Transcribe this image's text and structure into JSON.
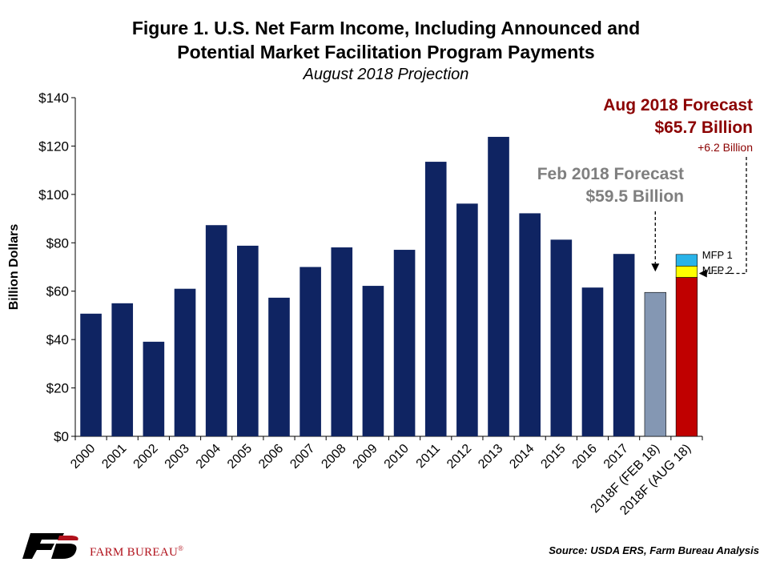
{
  "header": {
    "title_line1": "Figure 1. U.S. Net Farm Income, Including Announced and",
    "title_line2": "Potential Market Facilitation Program Payments",
    "subtitle": "August 2018 Projection"
  },
  "chart_data": {
    "type": "bar",
    "title": "Figure 1. U.S. Net Farm Income, Including Announced and Potential Market Facilitation Program Payments",
    "subtitle": "August 2018 Projection",
    "ylabel": "Billion Dollars",
    "xlabel": "",
    "ylim": [
      0,
      140
    ],
    "y_ticks": [
      0,
      20,
      40,
      60,
      80,
      100,
      120,
      140
    ],
    "y_tick_labels": [
      "$0",
      "$20",
      "$40",
      "$60",
      "$80",
      "$100",
      "$120",
      "$140"
    ],
    "grid": false,
    "categories": [
      "2000",
      "2001",
      "2002",
      "2003",
      "2004",
      "2005",
      "2006",
      "2007",
      "2008",
      "2009",
      "2010",
      "2011",
      "2012",
      "2013",
      "2014",
      "2015",
      "2016",
      "2017",
      "2018F (FEB 18)",
      "2018F (AUG 18)"
    ],
    "values": [
      50.7,
      55.0,
      39.1,
      61.0,
      87.3,
      78.8,
      57.3,
      70.0,
      78.1,
      62.2,
      77.1,
      113.5,
      96.2,
      123.8,
      92.2,
      81.3,
      61.5,
      75.4,
      59.5,
      65.7
    ],
    "bar_colors": {
      "historical": "#0f2462",
      "feb_forecast": "#8497b3",
      "aug_forecast": "#c00000",
      "mfp1": "#29b3e8",
      "mfp2": "#ffff00"
    },
    "stacked_extras": [
      {
        "name": "MFP 2",
        "value": 4.7
      },
      {
        "name": "MFP 1",
        "value": 4.8
      }
    ],
    "annotations": {
      "aug_line1": "Aug 2018 Forecast",
      "aug_line2": "$65.7 Billion",
      "aug_line3": "+6.2 Billion",
      "feb_line1": "Feb 2018 Forecast",
      "feb_line2": "$59.5 Billion",
      "mfp1_label": "MFP 1",
      "mfp2_label": "MFP 2",
      "aug_color": "#8b0000",
      "feb_color": "#7f7f7f"
    }
  },
  "footer": {
    "logo_text": "FARM BUREAU",
    "logo_mark": "®",
    "source": "Source: USDA ERS, Farm Bureau Analysis",
    "brand_color": "#b1121c"
  }
}
